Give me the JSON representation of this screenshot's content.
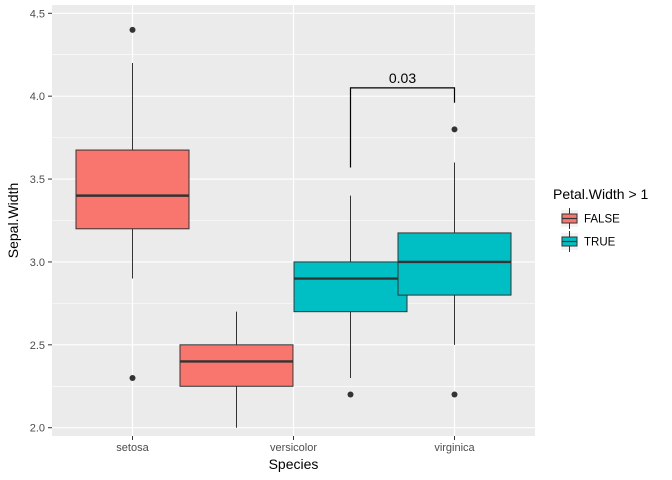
{
  "chart_data": {
    "type": "boxplot",
    "xlabel": "Species",
    "ylabel": "Sepal.Width",
    "ylim": [
      1.95,
      4.55
    ],
    "yticks": [
      "2.0",
      "2.5",
      "3.0",
      "3.5",
      "4.0",
      "4.5"
    ],
    "categories": [
      "setosa",
      "versicolor",
      "virginica"
    ],
    "legend": {
      "title": "Petal.Width > 1",
      "position": "right",
      "items": [
        {
          "label": "FALSE",
          "color": "#F8766D"
        },
        {
          "label": "TRUE",
          "color": "#00BFC4"
        }
      ]
    },
    "boxes": [
      {
        "category": "setosa",
        "group": "FALSE",
        "min": 2.9,
        "q1": 3.2,
        "median": 3.4,
        "q3": 3.675,
        "max": 4.2,
        "outliers": [
          4.4,
          2.3
        ]
      },
      {
        "category": "versicolor",
        "group": "FALSE",
        "min": 2.0,
        "q1": 2.25,
        "median": 2.4,
        "q3": 2.5,
        "max": 2.7,
        "outliers": []
      },
      {
        "category": "versicolor",
        "group": "TRUE",
        "min": 2.3,
        "q1": 2.7,
        "median": 2.9,
        "q3": 3.0,
        "max": 3.4,
        "outliers": [
          2.2
        ]
      },
      {
        "category": "virginica",
        "group": "TRUE",
        "min": 2.5,
        "q1": 2.8,
        "median": 3.0,
        "q3": 3.175,
        "max": 3.6,
        "outliers": [
          3.8,
          2.2
        ]
      }
    ],
    "annotation": {
      "label": "0.03",
      "from": "versicolor",
      "to": "virginica",
      "y": 4.05,
      "left_tip": 3.57,
      "right_tip": 3.96
    },
    "grid": true,
    "panel_background": "#EBEBEB",
    "grid_color": "#FFFFFF"
  }
}
